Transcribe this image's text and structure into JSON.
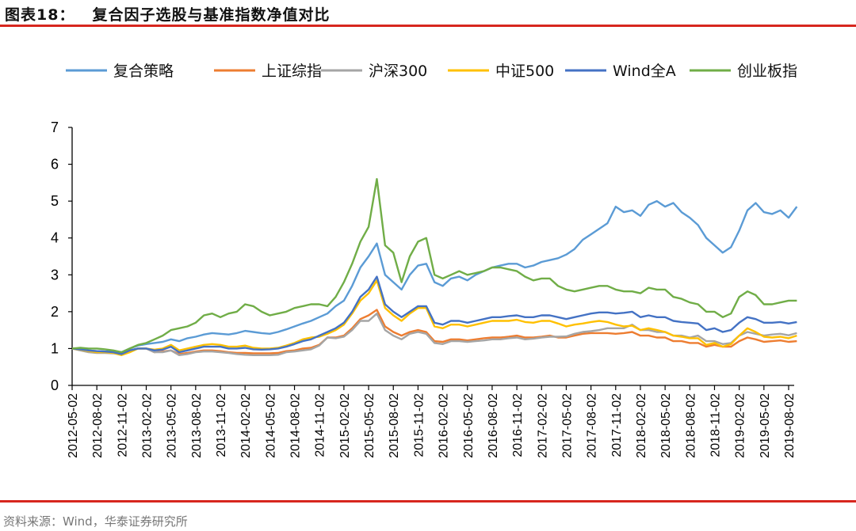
{
  "header": {
    "label": "图表18：",
    "title": "复合因子选股与基准指数净值对比"
  },
  "footer": {
    "source": "资料来源：Wind，华泰证券研究所"
  },
  "chart_data": {
    "type": "line",
    "title": "",
    "xlabel": "",
    "ylabel": "",
    "ylim": [
      0,
      7
    ],
    "yticks": [
      "0",
      "1",
      "2",
      "3",
      "4",
      "5",
      "6",
      "7"
    ],
    "grid": false,
    "legend": "top",
    "xtick_labels": [
      "2012-05-02",
      "2012-08-02",
      "2012-11-02",
      "2013-02-02",
      "2013-05-02",
      "2013-08-02",
      "2013-11-02",
      "2014-02-02",
      "2014-05-02",
      "2014-08-02",
      "2014-11-02",
      "2015-02-02",
      "2015-05-02",
      "2015-08-02",
      "2015-11-02",
      "2016-02-02",
      "2016-05-02",
      "2016-08-02",
      "2016-11-02",
      "2017-02-02",
      "2017-05-02",
      "2017-08-02",
      "2017-11-02",
      "2018-02-02",
      "2018-05-02",
      "2018-08-02",
      "2018-11-02",
      "2019-02-02",
      "2019-05-02",
      "2019-08-02"
    ],
    "x": [
      "2012-05",
      "2012-06",
      "2012-07",
      "2012-08",
      "2012-09",
      "2012-10",
      "2012-11",
      "2012-12",
      "2013-01",
      "2013-02",
      "2013-03",
      "2013-04",
      "2013-05",
      "2013-06",
      "2013-07",
      "2013-08",
      "2013-09",
      "2013-10",
      "2013-11",
      "2013-12",
      "2014-01",
      "2014-02",
      "2014-03",
      "2014-04",
      "2014-05",
      "2014-06",
      "2014-07",
      "2014-08",
      "2014-09",
      "2014-10",
      "2014-11",
      "2014-12",
      "2015-01",
      "2015-02",
      "2015-03",
      "2015-04",
      "2015-05",
      "2015-06",
      "2015-07",
      "2015-08",
      "2015-09",
      "2015-10",
      "2015-11",
      "2015-12",
      "2016-01",
      "2016-02",
      "2016-03",
      "2016-04",
      "2016-05",
      "2016-06",
      "2016-07",
      "2016-08",
      "2016-09",
      "2016-10",
      "2016-11",
      "2016-12",
      "2017-01",
      "2017-02",
      "2017-03",
      "2017-04",
      "2017-05",
      "2017-06",
      "2017-07",
      "2017-08",
      "2017-09",
      "2017-10",
      "2017-11",
      "2017-12",
      "2018-01",
      "2018-02",
      "2018-03",
      "2018-04",
      "2018-05",
      "2018-06",
      "2018-07",
      "2018-08",
      "2018-09",
      "2018-10",
      "2018-11",
      "2018-12",
      "2019-01",
      "2019-02",
      "2019-03",
      "2019-04",
      "2019-05",
      "2019-06",
      "2019-07",
      "2019-08",
      "2019-09"
    ],
    "series": [
      {
        "name": "复合策略",
        "color": "#5b9bd5",
        "values": [
          1.0,
          0.98,
          0.95,
          0.93,
          0.92,
          0.93,
          0.9,
          1.0,
          1.08,
          1.12,
          1.15,
          1.18,
          1.25,
          1.2,
          1.28,
          1.32,
          1.38,
          1.42,
          1.4,
          1.38,
          1.42,
          1.48,
          1.45,
          1.42,
          1.4,
          1.45,
          1.52,
          1.6,
          1.68,
          1.75,
          1.85,
          1.95,
          2.15,
          2.3,
          2.7,
          3.2,
          3.5,
          3.85,
          3.0,
          2.8,
          2.6,
          3.0,
          3.25,
          3.3,
          2.8,
          2.7,
          2.9,
          2.95,
          2.85,
          3.0,
          3.1,
          3.2,
          3.25,
          3.3,
          3.3,
          3.2,
          3.25,
          3.35,
          3.4,
          3.45,
          3.55,
          3.7,
          3.95,
          4.1,
          4.25,
          4.4,
          4.85,
          4.7,
          4.75,
          4.6,
          4.9,
          5.0,
          4.85,
          4.95,
          4.7,
          4.55,
          4.35,
          4.0,
          3.8,
          3.6,
          3.75,
          4.2,
          4.75,
          4.95,
          4.7,
          4.65,
          4.75,
          4.55,
          4.85
        ]
      },
      {
        "name": "上证综指",
        "color": "#ed7d31",
        "values": [
          1.0,
          0.96,
          0.92,
          0.9,
          0.89,
          0.88,
          0.85,
          0.95,
          1.0,
          1.0,
          0.9,
          0.92,
          0.95,
          0.85,
          0.88,
          0.92,
          0.95,
          0.95,
          0.93,
          0.9,
          0.88,
          0.88,
          0.87,
          0.87,
          0.87,
          0.88,
          0.93,
          0.95,
          1.0,
          1.02,
          1.1,
          1.3,
          1.3,
          1.35,
          1.55,
          1.8,
          1.9,
          2.05,
          1.6,
          1.45,
          1.35,
          1.45,
          1.5,
          1.45,
          1.2,
          1.18,
          1.25,
          1.25,
          1.22,
          1.25,
          1.28,
          1.3,
          1.3,
          1.32,
          1.35,
          1.3,
          1.3,
          1.32,
          1.35,
          1.3,
          1.3,
          1.35,
          1.4,
          1.42,
          1.42,
          1.42,
          1.4,
          1.42,
          1.45,
          1.35,
          1.35,
          1.3,
          1.3,
          1.2,
          1.2,
          1.15,
          1.15,
          1.05,
          1.1,
          1.05,
          1.05,
          1.2,
          1.3,
          1.25,
          1.18,
          1.2,
          1.22,
          1.18,
          1.2
        ]
      },
      {
        "name": "沪深300",
        "color": "#a5a5a5",
        "values": [
          1.0,
          0.95,
          0.9,
          0.88,
          0.88,
          0.87,
          0.83,
          0.95,
          1.0,
          1.0,
          0.9,
          0.9,
          0.95,
          0.82,
          0.85,
          0.9,
          0.92,
          0.92,
          0.9,
          0.88,
          0.85,
          0.83,
          0.82,
          0.82,
          0.82,
          0.83,
          0.9,
          0.92,
          0.95,
          0.98,
          1.08,
          1.3,
          1.28,
          1.32,
          1.5,
          1.75,
          1.75,
          1.95,
          1.5,
          1.35,
          1.25,
          1.4,
          1.45,
          1.4,
          1.15,
          1.12,
          1.2,
          1.2,
          1.18,
          1.2,
          1.22,
          1.25,
          1.25,
          1.28,
          1.3,
          1.25,
          1.27,
          1.3,
          1.32,
          1.32,
          1.33,
          1.4,
          1.45,
          1.47,
          1.5,
          1.55,
          1.55,
          1.55,
          1.65,
          1.5,
          1.5,
          1.45,
          1.45,
          1.35,
          1.35,
          1.3,
          1.35,
          1.2,
          1.2,
          1.12,
          1.15,
          1.35,
          1.45,
          1.4,
          1.35,
          1.38,
          1.4,
          1.36,
          1.42
        ]
      },
      {
        "name": "中证500",
        "color": "#ffc000",
        "values": [
          1.0,
          0.97,
          0.93,
          0.9,
          0.9,
          0.88,
          0.82,
          0.9,
          1.0,
          1.0,
          0.97,
          1.0,
          1.1,
          0.95,
          1.0,
          1.05,
          1.1,
          1.12,
          1.1,
          1.05,
          1.05,
          1.08,
          1.02,
          1.0,
          1.0,
          1.02,
          1.08,
          1.15,
          1.25,
          1.3,
          1.32,
          1.4,
          1.5,
          1.65,
          1.95,
          2.3,
          2.5,
          2.85,
          2.1,
          1.9,
          1.75,
          1.95,
          2.1,
          2.1,
          1.6,
          1.55,
          1.65,
          1.65,
          1.6,
          1.65,
          1.7,
          1.75,
          1.75,
          1.75,
          1.78,
          1.72,
          1.7,
          1.75,
          1.75,
          1.68,
          1.6,
          1.65,
          1.68,
          1.72,
          1.75,
          1.72,
          1.65,
          1.6,
          1.62,
          1.5,
          1.55,
          1.5,
          1.45,
          1.35,
          1.32,
          1.28,
          1.28,
          1.1,
          1.15,
          1.05,
          1.12,
          1.35,
          1.55,
          1.45,
          1.32,
          1.3,
          1.32,
          1.28,
          1.35
        ]
      },
      {
        "name": "Wind全A",
        "color": "#4472c4",
        "values": [
          1.0,
          0.98,
          0.95,
          0.93,
          0.92,
          0.9,
          0.85,
          0.95,
          1.0,
          1.0,
          0.95,
          0.97,
          1.05,
          0.9,
          0.95,
          1.0,
          1.05,
          1.05,
          1.05,
          1.0,
          1.0,
          1.02,
          0.98,
          0.97,
          0.98,
          1.0,
          1.05,
          1.12,
          1.2,
          1.25,
          1.35,
          1.45,
          1.55,
          1.7,
          2.0,
          2.4,
          2.6,
          2.95,
          2.2,
          2.0,
          1.85,
          2.0,
          2.15,
          2.15,
          1.7,
          1.65,
          1.75,
          1.75,
          1.7,
          1.75,
          1.8,
          1.85,
          1.85,
          1.88,
          1.9,
          1.85,
          1.85,
          1.9,
          1.9,
          1.85,
          1.8,
          1.85,
          1.9,
          1.95,
          1.98,
          1.98,
          1.95,
          1.97,
          2.0,
          1.85,
          1.9,
          1.85,
          1.85,
          1.75,
          1.72,
          1.7,
          1.68,
          1.5,
          1.55,
          1.45,
          1.5,
          1.7,
          1.85,
          1.8,
          1.7,
          1.7,
          1.72,
          1.68,
          1.72
        ]
      },
      {
        "name": "创业板指",
        "color": "#70ad47",
        "values": [
          1.0,
          1.02,
          1.0,
          1.0,
          0.98,
          0.95,
          0.9,
          1.0,
          1.1,
          1.15,
          1.25,
          1.35,
          1.5,
          1.55,
          1.6,
          1.7,
          1.9,
          1.95,
          1.85,
          1.95,
          2.0,
          2.2,
          2.15,
          2.0,
          1.9,
          1.95,
          2.0,
          2.1,
          2.15,
          2.2,
          2.2,
          2.15,
          2.4,
          2.8,
          3.3,
          3.9,
          4.3,
          5.6,
          3.8,
          3.6,
          2.8,
          3.5,
          3.9,
          4.0,
          3.0,
          2.9,
          3.0,
          3.1,
          3.0,
          3.05,
          3.1,
          3.2,
          3.2,
          3.15,
          3.1,
          2.95,
          2.85,
          2.9,
          2.9,
          2.7,
          2.6,
          2.55,
          2.6,
          2.65,
          2.7,
          2.7,
          2.6,
          2.55,
          2.55,
          2.5,
          2.65,
          2.6,
          2.6,
          2.4,
          2.35,
          2.25,
          2.2,
          2.0,
          2.0,
          1.85,
          1.95,
          2.4,
          2.55,
          2.45,
          2.2,
          2.2,
          2.25,
          2.3,
          2.3
        ]
      }
    ]
  }
}
